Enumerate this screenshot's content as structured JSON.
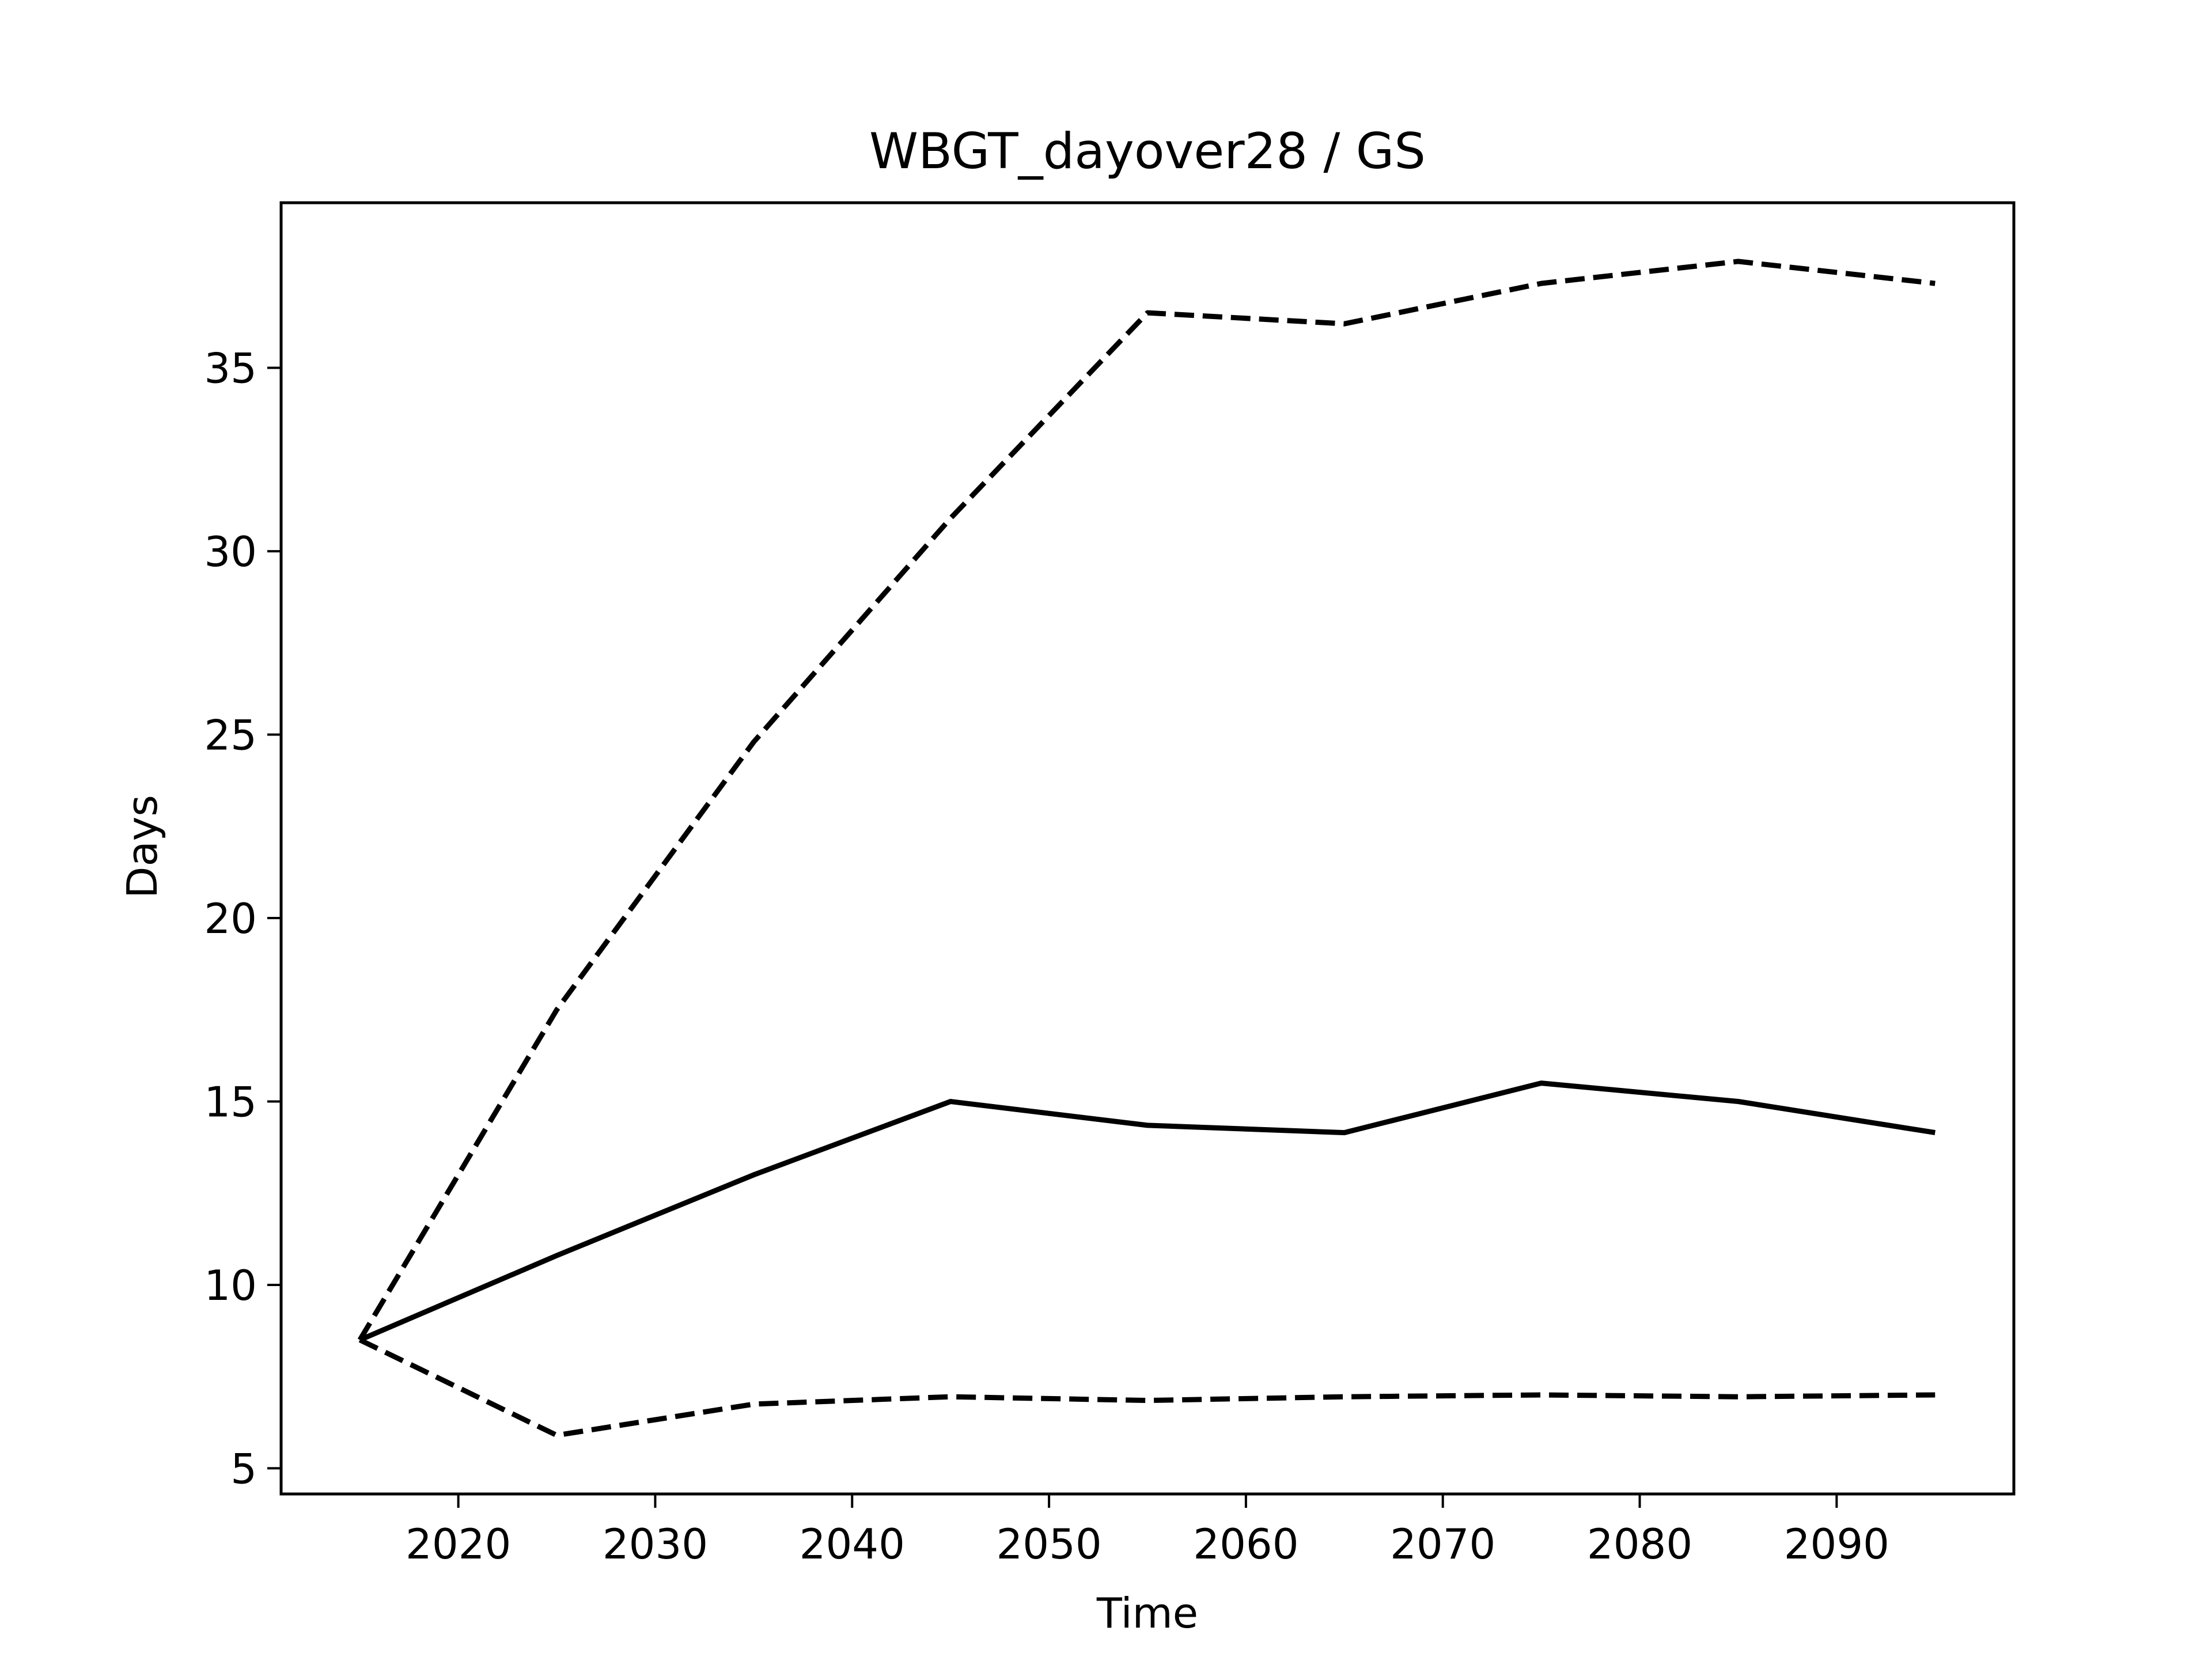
{
  "chart_data": {
    "type": "line",
    "title": "WBGT_dayover28 / GS",
    "xlabel": "Time",
    "ylabel": "Days",
    "xlim": [
      2011,
      2099
    ],
    "ylim": [
      4.3,
      39.5
    ],
    "xticks": [
      2020,
      2030,
      2040,
      2050,
      2060,
      2070,
      2080,
      2090
    ],
    "yticks": [
      5,
      10,
      15,
      20,
      25,
      30,
      35
    ],
    "grid": false,
    "legend": "none",
    "x": [
      2015,
      2025,
      2035,
      2045,
      2055,
      2065,
      2075,
      2085,
      2095
    ],
    "series": [
      {
        "style": "dashed",
        "color": "#000000",
        "values": [
          8.5,
          17.5,
          24.8,
          30.9,
          36.5,
          36.2,
          37.3,
          37.9,
          37.3
        ]
      },
      {
        "style": "solid",
        "color": "#000000",
        "values": [
          8.5,
          10.8,
          13.0,
          15.0,
          14.35,
          14.15,
          15.5,
          15.0,
          14.15
        ]
      },
      {
        "style": "dashed",
        "color": "#000000",
        "values": [
          8.5,
          5.9,
          6.75,
          6.95,
          6.85,
          6.95,
          7.0,
          6.95,
          7.0
        ]
      }
    ]
  }
}
